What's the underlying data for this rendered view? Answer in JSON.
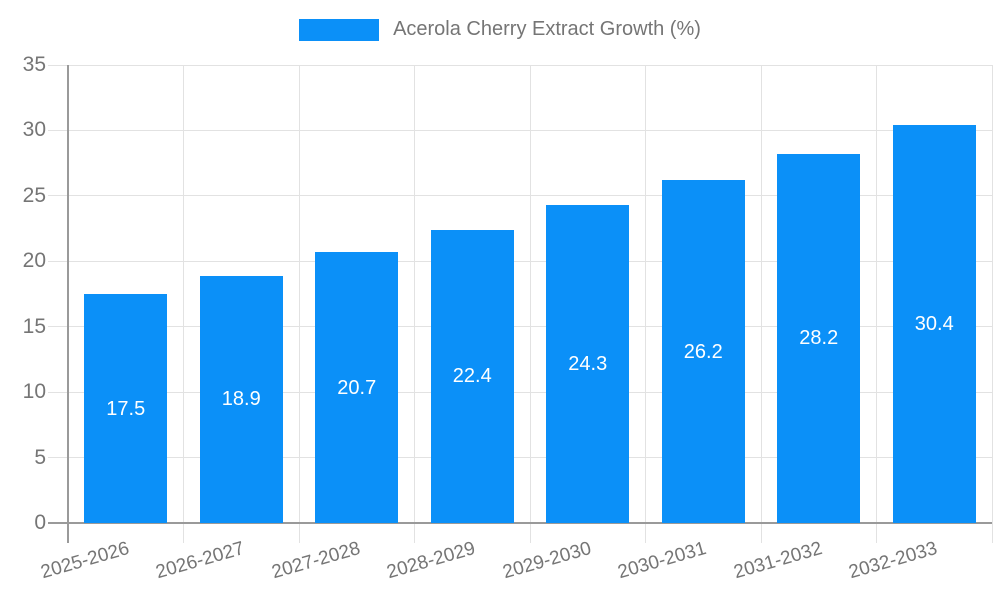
{
  "legend": {
    "label": "Acerola Cherry Extract Growth (%)",
    "swatch_color": "#0b90f8"
  },
  "chart_data": {
    "type": "bar",
    "title": "Acerola Cherry Extract Growth (%)",
    "categories": [
      "2025-2026",
      "2026-2027",
      "2027-2028",
      "2028-2029",
      "2029-2030",
      "2030-2031",
      "2031-2032",
      "2032-2033"
    ],
    "values": [
      17.5,
      18.9,
      20.7,
      22.4,
      24.3,
      26.2,
      28.2,
      30.4
    ],
    "value_label_decimals": 1,
    "xlabel": "",
    "ylabel": "",
    "ylim": [
      0,
      35
    ],
    "yticks": [
      0,
      5,
      10,
      15,
      20,
      25,
      30,
      35
    ],
    "grid": true,
    "legend_entries": [
      "Acerola Cherry Extract Growth (%)"
    ],
    "legend_position": "top-center",
    "x_label_rotation_deg": -16,
    "bar_color": "#0b90f8",
    "value_label_color": "#ffffff",
    "axis_color": "#9a9a9a",
    "grid_color": "#e2e2e2",
    "tick_label_color": "#757575"
  }
}
